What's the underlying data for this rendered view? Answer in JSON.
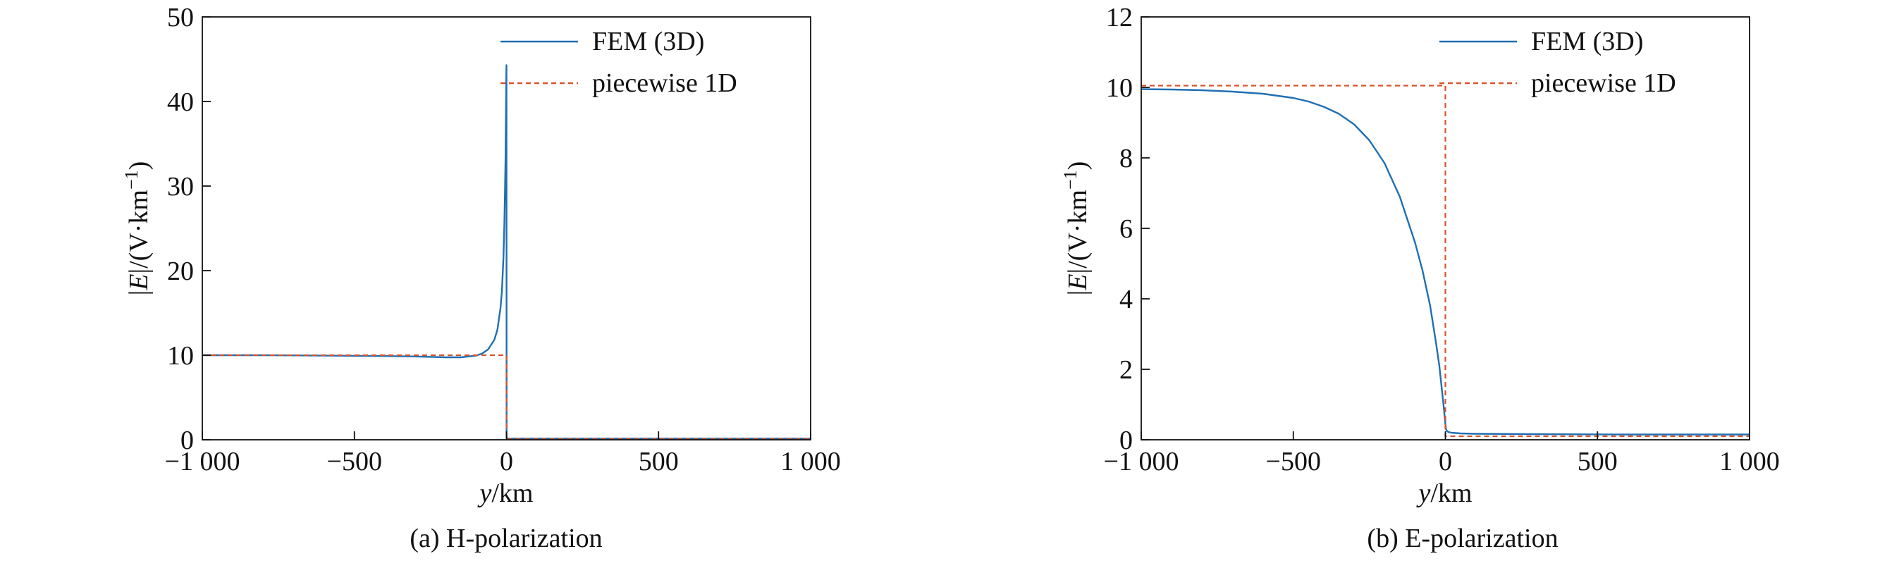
{
  "chart_data": [
    {
      "type": "line",
      "caption": "(a) H-polarization",
      "xlabel_italic": "y",
      "xlabel_rest": "/km",
      "ylabel_pre": "|",
      "ylabel_italic": "E",
      "ylabel_post": "|/(V·km",
      "ylabel_sup": "−1",
      "ylabel_end": ")",
      "xlim": [
        -1000,
        1000
      ],
      "ylim": [
        0,
        50
      ],
      "xticks": [
        -1000,
        -500,
        0,
        500,
        1000
      ],
      "xtick_labels": [
        "−1 000",
        "−500",
        "0",
        "500",
        "1 000"
      ],
      "yticks": [
        0,
        10,
        20,
        30,
        40,
        50
      ],
      "ytick_labels": [
        "0",
        "10",
        "20",
        "30",
        "40",
        "50"
      ],
      "legend_position": "top-right",
      "grid": false,
      "series": [
        {
          "name": "FEM (3D)",
          "style": "solid",
          "color": "#1f6fb2",
          "x": [
            -1000,
            -800,
            -600,
            -400,
            -300,
            -200,
            -150,
            -100,
            -80,
            -60,
            -40,
            -30,
            -20,
            -15,
            -10,
            -7,
            -5,
            -3,
            -2,
            -1,
            -0.5,
            0,
            0.5,
            1,
            5,
            50,
            200,
            500,
            800,
            1000
          ],
          "y": [
            10.0,
            10.0,
            9.95,
            9.9,
            9.85,
            9.75,
            9.75,
            9.95,
            10.2,
            10.7,
            11.8,
            13.0,
            15.5,
            17.5,
            21.5,
            25.5,
            29.0,
            33.5,
            37.0,
            41.0,
            43.5,
            44.3,
            0.4,
            0.2,
            0.15,
            0.15,
            0.15,
            0.15,
            0.15,
            0.15
          ]
        },
        {
          "name": "piecewise 1D",
          "style": "dashed",
          "color": "#d9532c",
          "x": [
            -1000,
            0,
            0,
            1000
          ],
          "y": [
            10.0,
            10.0,
            0.1,
            0.1
          ]
        }
      ]
    },
    {
      "type": "line",
      "caption": "(b) E-polarization",
      "xlabel_italic": "y",
      "xlabel_rest": "/km",
      "ylabel_pre": "|",
      "ylabel_italic": "E",
      "ylabel_post": "|/(V·km",
      "ylabel_sup": "−1",
      "ylabel_end": ")",
      "xlim": [
        -1000,
        1000
      ],
      "ylim": [
        0,
        12
      ],
      "xticks": [
        -1000,
        -500,
        0,
        500,
        1000
      ],
      "xtick_labels": [
        "−1 000",
        "−500",
        "0",
        "500",
        "1 000"
      ],
      "yticks": [
        0,
        2,
        4,
        6,
        8,
        10,
        12
      ],
      "ytick_labels": [
        "0",
        "2",
        "4",
        "6",
        "8",
        "10",
        "12"
      ],
      "legend_position": "top-right",
      "grid": false,
      "series": [
        {
          "name": "FEM (3D)",
          "style": "solid",
          "color": "#1f6fb2",
          "x": [
            -1000,
            -900,
            -800,
            -700,
            -600,
            -500,
            -450,
            -400,
            -350,
            -300,
            -250,
            -200,
            -150,
            -100,
            -75,
            -50,
            -30,
            -20,
            -10,
            -5,
            0,
            2,
            5,
            10,
            20,
            50,
            100,
            300,
            600,
            1000
          ],
          "y": [
            9.95,
            9.94,
            9.92,
            9.88,
            9.82,
            9.7,
            9.6,
            9.45,
            9.25,
            8.95,
            8.5,
            7.85,
            6.9,
            5.6,
            4.8,
            3.8,
            2.7,
            2.1,
            1.3,
            0.9,
            0.45,
            0.3,
            0.25,
            0.22,
            0.2,
            0.18,
            0.17,
            0.16,
            0.15,
            0.15
          ]
        },
        {
          "name": "piecewise 1D",
          "style": "dashed",
          "color": "#d9532c",
          "x": [
            -1000,
            0,
            0,
            1000
          ],
          "y": [
            10.05,
            10.05,
            0.1,
            0.1
          ]
        }
      ]
    }
  ]
}
